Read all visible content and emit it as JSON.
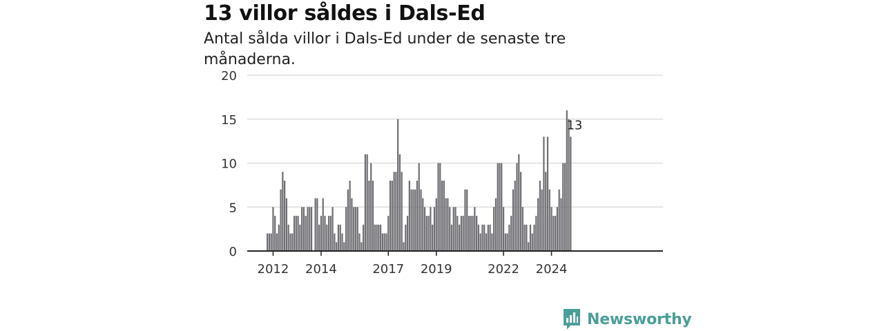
{
  "title": "13 villor såldes i Dals-Ed",
  "subtitle": "Antal sålda villor i Dals-Ed under de senaste tre månaderna.",
  "brand": {
    "name": "Newsworthy"
  },
  "colors": {
    "bar": "#6e6e73",
    "highlight": "#2b9e94",
    "grid": "#dddddd",
    "axis": "#222222",
    "brand": "#4a9e98"
  },
  "chart_data": {
    "type": "bar",
    "title": "",
    "xlabel": "",
    "ylabel": "",
    "ylim": [
      0,
      20
    ],
    "yticks": [
      0,
      5,
      10,
      15,
      20
    ],
    "xticks": [
      "2012",
      "2014",
      "2017",
      "2019",
      "2022",
      "2024"
    ],
    "xtick_index": [
      3,
      28,
      63,
      88,
      123,
      148
    ],
    "grid": true,
    "highlight": {
      "index": 160,
      "value": 13,
      "label": "13"
    },
    "values": [
      2,
      2,
      2,
      5,
      4,
      2,
      3,
      7,
      9,
      8,
      6,
      3,
      2,
      2,
      4,
      4,
      4,
      3,
      5,
      5,
      4,
      5,
      5,
      5,
      0,
      6,
      6,
      3,
      4,
      6,
      4,
      3,
      4,
      4,
      5,
      2,
      1,
      3,
      3,
      2,
      1,
      5,
      7,
      8,
      6,
      5,
      5,
      5,
      2,
      1,
      3,
      11,
      11,
      8,
      10,
      8,
      3,
      3,
      3,
      3,
      2,
      2,
      2,
      4,
      8,
      8,
      9,
      9,
      15,
      11,
      9,
      1,
      3,
      4,
      8,
      7,
      7,
      7,
      8,
      10,
      7,
      6,
      5,
      4,
      4,
      5,
      3,
      5,
      6,
      10,
      10,
      8,
      8,
      6,
      6,
      5,
      3,
      5,
      5,
      4,
      3,
      4,
      4,
      7,
      7,
      4,
      4,
      4,
      5,
      4,
      3,
      2,
      3,
      3,
      2,
      3,
      3,
      2,
      5,
      6,
      10,
      10,
      10,
      5,
      2,
      2,
      3,
      4,
      7,
      8,
      10,
      11,
      9,
      5,
      3,
      3,
      1,
      3,
      2,
      3,
      4,
      6,
      8,
      7,
      13,
      9,
      13,
      7,
      5,
      4,
      4,
      5,
      7,
      6,
      10,
      10,
      16,
      15,
      13
    ]
  }
}
